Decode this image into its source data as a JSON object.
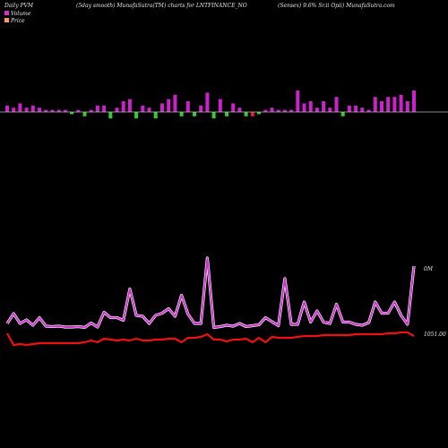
{
  "header": {
    "left": "Daily PVM",
    "center": "(5day smooth) MunafaSutra(TM) charts for LNTFINANCE_NO",
    "right": "(Sensex) 9.6% Sr.ii Opii) MunafaSutra.com"
  },
  "legend": {
    "volume_label": "Volume",
    "price_label": "Price",
    "volume_color": "#cc33cc",
    "price_color": "#ff9966"
  },
  "chart_data": {
    "type": "bar",
    "volume_label_value": "0M",
    "price_label_value": "1051.00",
    "colors": {
      "volume_up": "#cc22cc",
      "volume_down_green": "#33cc33",
      "volume_down_red": "#dd2222",
      "volume_line": "#cc33cc",
      "price_line": "#ee1111",
      "baseline": "#bbbbbb"
    },
    "volume_bars": [
      {
        "v": 3,
        "c": "m"
      },
      {
        "v": 2,
        "c": "m"
      },
      {
        "v": 4,
        "c": "m"
      },
      {
        "v": 2,
        "c": "m"
      },
      {
        "v": 3,
        "c": "m"
      },
      {
        "v": 2,
        "c": "m"
      },
      {
        "v": 1,
        "c": "m"
      },
      {
        "v": 1,
        "c": "m"
      },
      {
        "v": 1,
        "c": "m"
      },
      {
        "v": 1,
        "c": "m"
      },
      {
        "v": 1,
        "c": "g"
      },
      {
        "v": 1,
        "c": "m"
      },
      {
        "v": 2,
        "c": "g"
      },
      {
        "v": 1,
        "c": "m"
      },
      {
        "v": 3,
        "c": "m"
      },
      {
        "v": 3,
        "c": "m"
      },
      {
        "v": 3,
        "c": "g"
      },
      {
        "v": 2,
        "c": "m"
      },
      {
        "v": 5,
        "c": "m"
      },
      {
        "v": 6,
        "c": "m"
      },
      {
        "v": 3,
        "c": "g"
      },
      {
        "v": 3,
        "c": "m"
      },
      {
        "v": 2,
        "c": "m"
      },
      {
        "v": 3,
        "c": "g"
      },
      {
        "v": 4,
        "c": "m"
      },
      {
        "v": 6,
        "c": "m"
      },
      {
        "v": 8,
        "c": "m"
      },
      {
        "v": 2,
        "c": "g"
      },
      {
        "v": 5,
        "c": "m"
      },
      {
        "v": 2,
        "c": "g"
      },
      {
        "v": 3,
        "c": "m"
      },
      {
        "v": 9,
        "c": "m"
      },
      {
        "v": 3,
        "c": "g"
      },
      {
        "v": 6,
        "c": "m"
      },
      {
        "v": 2,
        "c": "g"
      },
      {
        "v": 4,
        "c": "m"
      },
      {
        "v": 2,
        "c": "m"
      },
      {
        "v": 2,
        "c": "g"
      },
      {
        "v": 2,
        "c": "r"
      },
      {
        "v": 1,
        "c": "g"
      },
      {
        "v": 1,
        "c": "m"
      },
      {
        "v": 2,
        "c": "m"
      },
      {
        "v": 1,
        "c": "m"
      },
      {
        "v": 1,
        "c": "m"
      },
      {
        "v": 1,
        "c": "m"
      },
      {
        "v": 10,
        "c": "m"
      },
      {
        "v": 4,
        "c": "m"
      },
      {
        "v": 5,
        "c": "m"
      },
      {
        "v": 2,
        "c": "m"
      },
      {
        "v": 5,
        "c": "m"
      },
      {
        "v": 2,
        "c": "m"
      },
      {
        "v": 7,
        "c": "m"
      },
      {
        "v": 2,
        "c": "g"
      },
      {
        "v": 3,
        "c": "m"
      },
      {
        "v": 3,
        "c": "m"
      },
      {
        "v": 2,
        "c": "m"
      },
      {
        "v": 1,
        "c": "m"
      },
      {
        "v": 7,
        "c": "m"
      },
      {
        "v": 5,
        "c": "m"
      },
      {
        "v": 7,
        "c": "m"
      },
      {
        "v": 7,
        "c": "m"
      },
      {
        "v": 8,
        "c": "m"
      },
      {
        "v": 5,
        "c": "m"
      },
      {
        "v": 10,
        "c": "m"
      }
    ],
    "volume_line": [
      22,
      44,
      22,
      30,
      18,
      35,
      16,
      15,
      16,
      14,
      14,
      15,
      13,
      23,
      14,
      47,
      35,
      35,
      29,
      99,
      40,
      38,
      22,
      40,
      45,
      55,
      38,
      85,
      43,
      22,
      22,
      168,
      13,
      15,
      18,
      16,
      22,
      15,
      17,
      19,
      35,
      26,
      17,
      122,
      20,
      20,
      70,
      25,
      50,
      25,
      22,
      65,
      25,
      25,
      20,
      18,
      24,
      70,
      45,
      45,
      70,
      40,
      20,
      150
    ],
    "price_line": [
      13,
      0,
      1,
      0,
      1,
      2,
      2,
      2,
      2,
      2,
      2,
      2,
      3,
      5,
      3,
      7,
      6,
      5,
      6,
      5,
      7,
      5,
      5,
      6,
      6,
      7,
      7,
      3,
      8,
      8,
      9,
      12,
      6,
      6,
      4,
      6,
      6,
      7,
      3,
      8,
      3,
      9,
      8,
      8,
      8,
      9,
      10,
      10,
      10,
      11,
      11,
      11,
      11,
      11,
      12,
      12,
      12,
      12,
      12,
      13,
      13,
      14,
      14,
      10
    ]
  }
}
